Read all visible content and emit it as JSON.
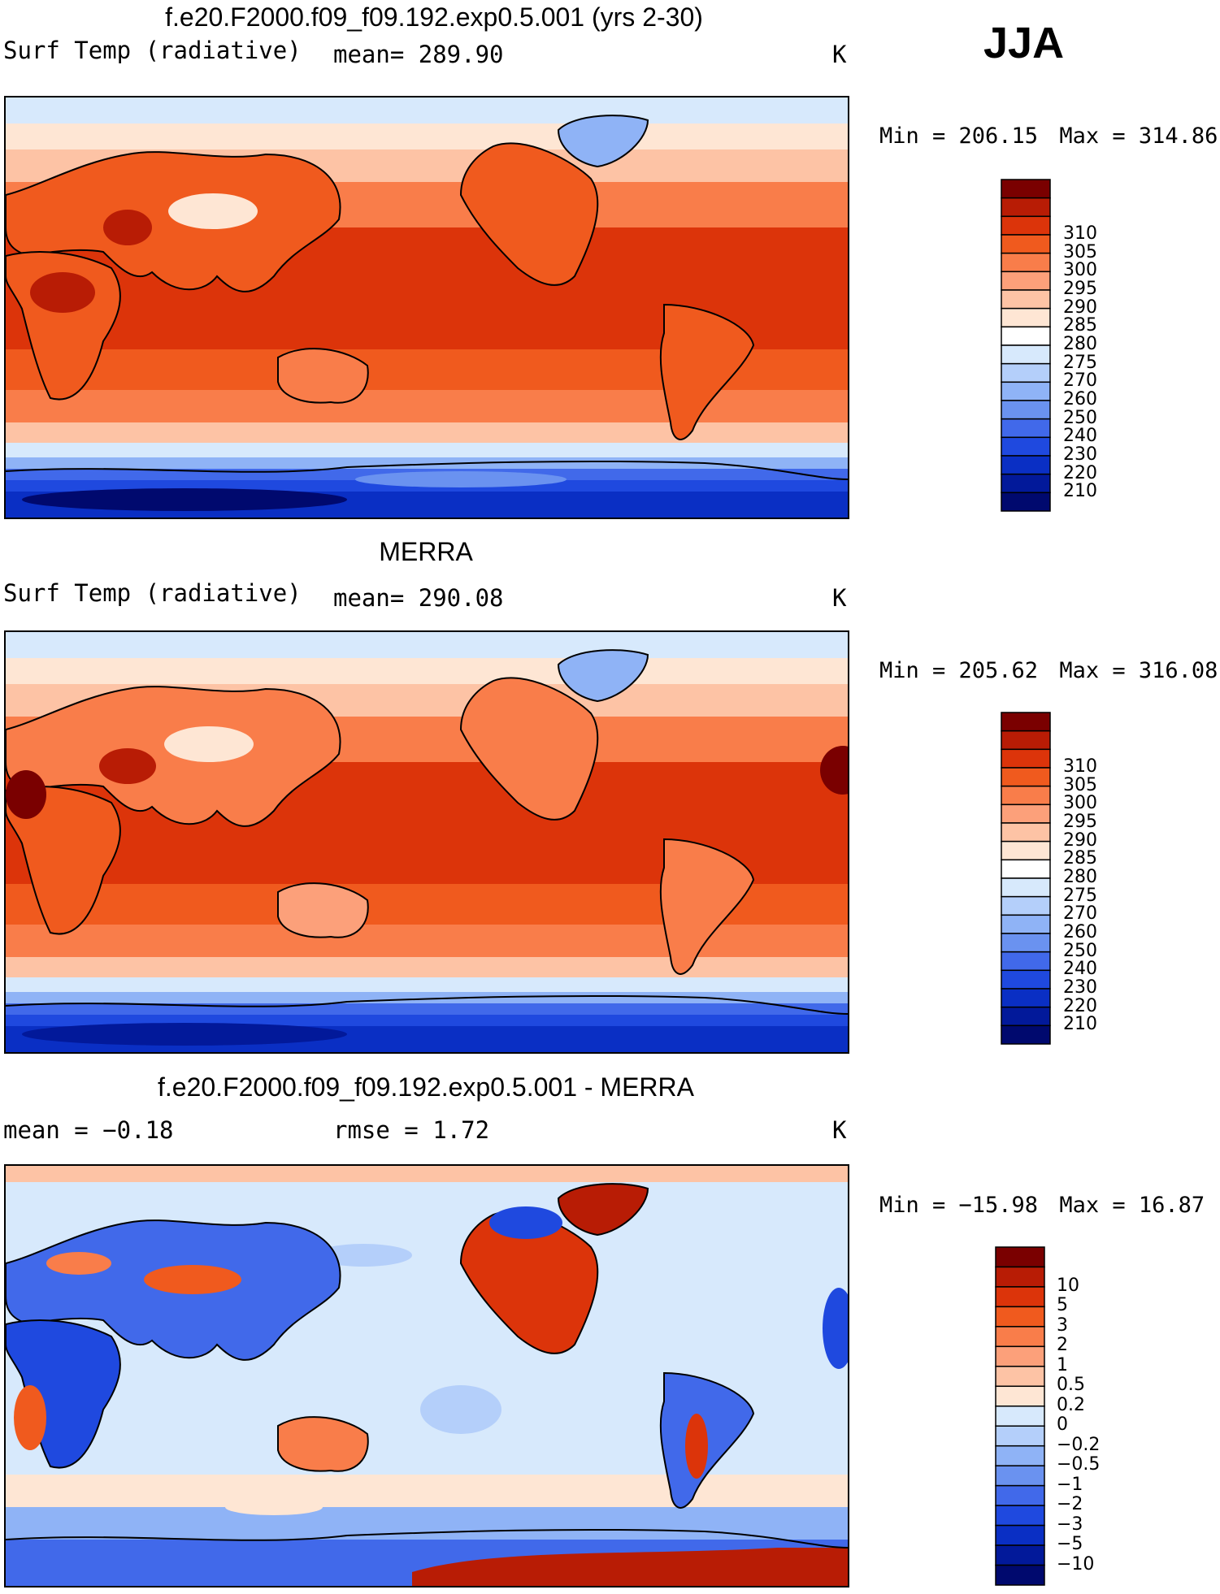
{
  "season": "JJA",
  "panels": [
    {
      "id": "model",
      "title": "f.e20.F2000.f09_f09.192.exp0.5.001 (yrs 2-30)",
      "left_label": "Surf Temp (radiative)",
      "center_label": "mean= 289.90",
      "units": "K",
      "min_label": "Min = 206.15",
      "max_label": "Max = 314.86"
    },
    {
      "id": "merra",
      "title": "MERRA",
      "left_label": "Surf Temp (radiative)",
      "center_label": "mean= 290.08",
      "units": "K",
      "min_label": "Min = 205.62",
      "max_label": "Max = 316.08"
    },
    {
      "id": "difference",
      "title": "f.e20.F2000.f09_f09.192.exp0.5.001 - MERRA",
      "left_label": "mean =  −0.18",
      "center_label": "rmse =   1.72",
      "units": "K",
      "min_label": "Min = −15.98",
      "max_label": "Max =  16.87"
    }
  ],
  "colorbars": {
    "temperature": {
      "labels": [
        "310",
        "305",
        "300",
        "295",
        "290",
        "285",
        "280",
        "275",
        "270",
        "260",
        "250",
        "240",
        "230",
        "220",
        "210"
      ],
      "colors": [
        "#7a0000",
        "#b81c05",
        "#dc340a",
        "#f05a1e",
        "#f97d4a",
        "#fca07a",
        "#fdc3a5",
        "#fee6d4",
        "#ffffff",
        "#d7e9fc",
        "#b4cffa",
        "#8fb3f6",
        "#6a92f0",
        "#4169ea",
        "#1f49df",
        "#0a2fc4",
        "#02199a",
        "#00096e"
      ]
    },
    "difference": {
      "labels": [
        "10",
        "5",
        "3",
        "2",
        "1",
        "0.5",
        "0.2",
        "0",
        "−0.2",
        "−0.5",
        "−1",
        "−2",
        "−3",
        "−5",
        "−10"
      ],
      "colors": [
        "#7a0000",
        "#b81c05",
        "#dc340a",
        "#f05a1e",
        "#f97d4a",
        "#fca07a",
        "#fdc3a5",
        "#fee6d4",
        "#d7e9fc",
        "#b4cffa",
        "#8fb3f6",
        "#6a92f0",
        "#4169ea",
        "#1f49df",
        "#0a2fc4",
        "#02199a",
        "#00096e"
      ]
    }
  }
}
